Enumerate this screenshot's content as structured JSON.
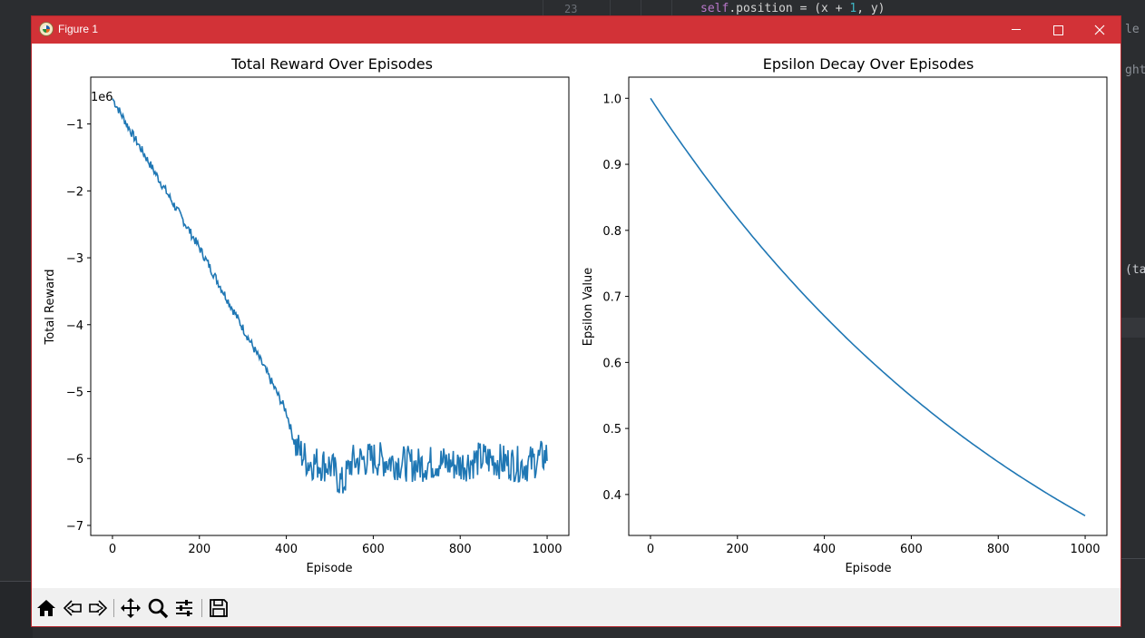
{
  "editor": {
    "line_number": "23",
    "code_keyword": "self",
    "code_before": ".position = (x + ",
    "code_num": "1",
    "code_after": ", y)",
    "fragments": [
      "le",
      "ght",
      "(tar"
    ]
  },
  "window": {
    "title": "Figure 1",
    "icon": "matplotlib-icon",
    "controls": [
      "minimize-icon",
      "maximize-icon",
      "close-icon"
    ],
    "accent_color": "#d23237"
  },
  "toolbar": {
    "buttons": [
      "home-icon",
      "back-icon",
      "forward-icon",
      "pan-icon",
      "zoom-icon",
      "configure-subplots-icon",
      "save-icon"
    ]
  },
  "chart_data": [
    {
      "type": "line",
      "title": "Total Reward Over Episodes",
      "xlabel": "Episode",
      "ylabel": "Total Reward",
      "offset_label": "1e6",
      "xlim": [
        -50,
        1050
      ],
      "ylim": [
        -7.15,
        -0.3
      ],
      "xticks": [
        0,
        200,
        400,
        600,
        800,
        1000
      ],
      "xtick_labels": [
        "0",
        "200",
        "400",
        "600",
        "800",
        "1000"
      ],
      "yticks": [
        -1,
        -2,
        -3,
        -4,
        -5,
        -6,
        -7
      ],
      "ytick_labels": [
        "−1",
        "−2",
        "−3",
        "−4",
        "−5",
        "−6",
        "−7"
      ],
      "line_color": "#1f77b4",
      "series": [
        {
          "x": [
            0,
            50,
            100,
            150,
            200,
            250,
            300,
            350,
            400,
            420,
            450,
            500,
            530,
            550,
            600,
            650,
            700,
            750,
            800,
            850,
            900,
            950,
            1000
          ],
          "values": [
            -0.62,
            -1.2,
            -1.75,
            -2.3,
            -2.85,
            -3.45,
            -4.05,
            -4.65,
            -5.3,
            -5.8,
            -6.05,
            -6.1,
            -6.4,
            -6.05,
            -6.0,
            -6.05,
            -6.1,
            -6.05,
            -6.1,
            -6.0,
            -6.05,
            -6.1,
            -5.95
          ]
        }
      ],
      "noise_amplitude": 0.45
    },
    {
      "type": "line",
      "title": "Epsilon Decay Over Episodes",
      "xlabel": "Episode",
      "ylabel": "Epsilon Value",
      "xlim": [
        -50,
        1050
      ],
      "ylim": [
        0.338,
        1.032
      ],
      "xticks": [
        0,
        200,
        400,
        600,
        800,
        1000
      ],
      "xtick_labels": [
        "0",
        "200",
        "400",
        "600",
        "800",
        "1000"
      ],
      "yticks": [
        1.0,
        0.9,
        0.8,
        0.7,
        0.6,
        0.5,
        0.4
      ],
      "ytick_labels": [
        "1.0",
        "0.9",
        "0.8",
        "0.7",
        "0.6",
        "0.5",
        "0.4"
      ],
      "line_color": "#1f77b4",
      "series": [
        {
          "x": [
            0,
            100,
            200,
            300,
            400,
            500,
            600,
            700,
            800,
            900,
            1000
          ],
          "values": [
            1.0,
            0.905,
            0.819,
            0.741,
            0.67,
            0.607,
            0.549,
            0.497,
            0.449,
            0.407,
            0.368
          ]
        }
      ]
    }
  ]
}
